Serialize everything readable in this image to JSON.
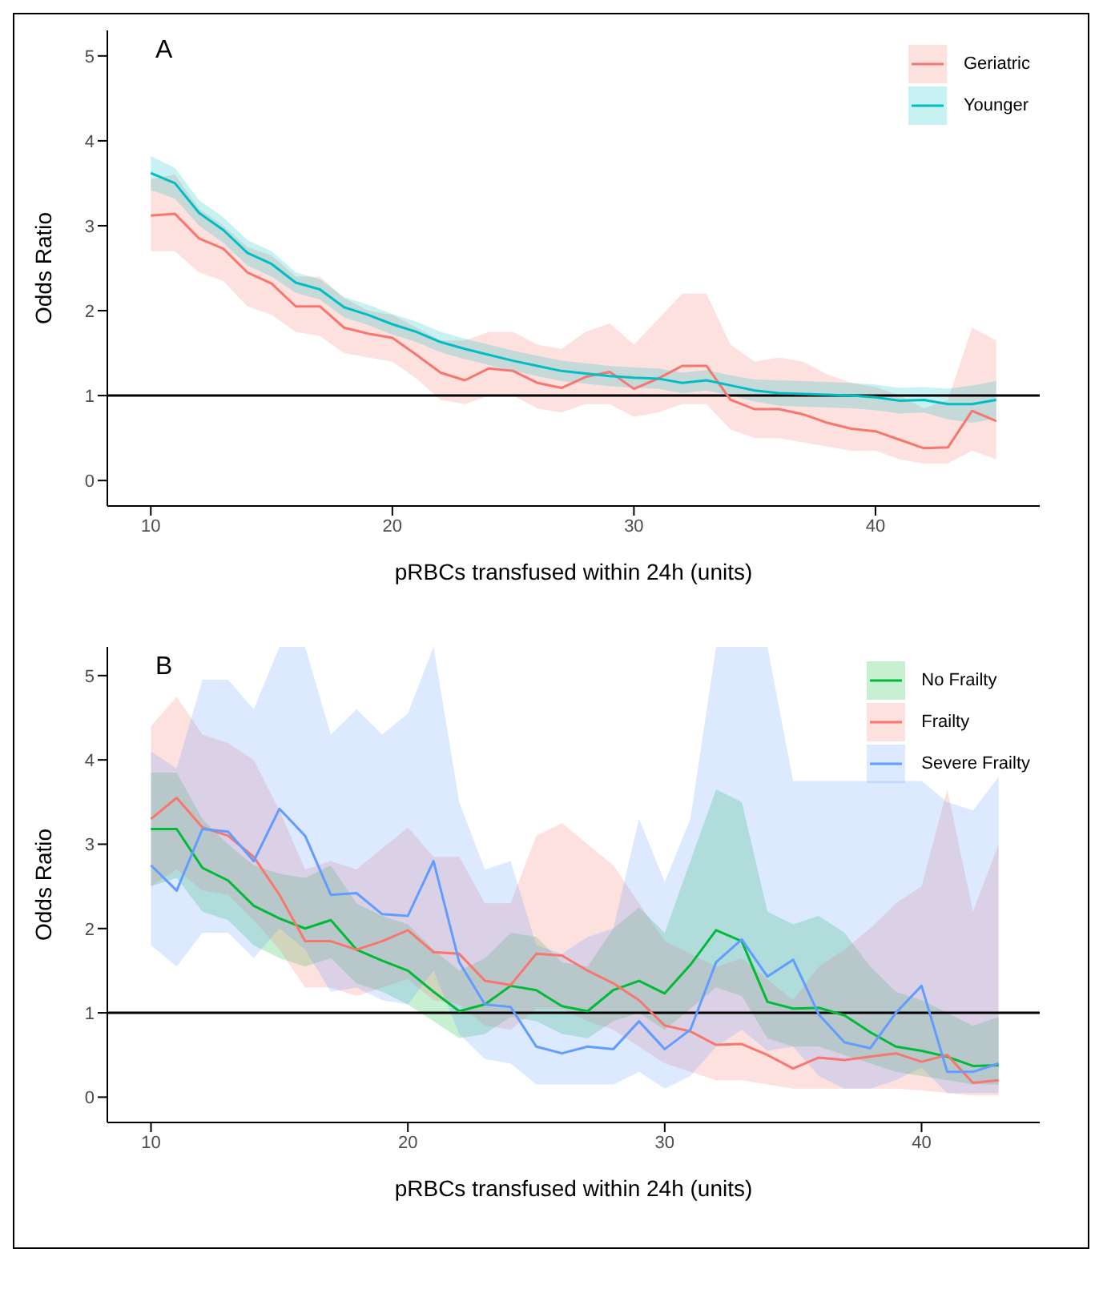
{
  "chart_data": [
    {
      "type": "line",
      "title": "A",
      "xlabel": "pRBCs transfused within 24h (units)",
      "ylabel": "Odds Ratio",
      "legend": "top right",
      "xlim": [
        8.2,
        46.8
      ],
      "xticks": [
        10,
        20,
        30,
        40
      ],
      "ylim": [
        -0.3,
        5.3
      ],
      "yticks": [
        0,
        1,
        2,
        3,
        4,
        5
      ],
      "x": [
        10,
        11,
        12,
        13,
        14,
        15,
        16,
        17,
        18,
        19,
        20,
        21,
        22,
        23,
        24,
        25,
        26,
        27,
        28,
        29,
        30,
        31,
        32,
        33,
        34,
        35,
        36,
        37,
        38,
        39,
        40,
        41,
        42,
        43,
        44,
        45
      ],
      "ref_lines": [
        {
          "axis": "y",
          "value": 1,
          "color": "#000000"
        }
      ],
      "series": [
        {
          "name": "Geriatric",
          "color": "#f8766d",
          "values": [
            3.12,
            3.14,
            2.85,
            2.73,
            2.45,
            2.32,
            2.05,
            2.05,
            1.8,
            1.73,
            1.68,
            1.48,
            1.27,
            1.18,
            1.32,
            1.29,
            1.15,
            1.09,
            1.22,
            1.28,
            1.08,
            1.2,
            1.35,
            1.35,
            0.95,
            0.84,
            0.84,
            0.78,
            0.68,
            0.61,
            0.58,
            0.48,
            0.38,
            0.39,
            0.82,
            0.7
          ],
          "lower": [
            2.7,
            2.7,
            2.45,
            2.35,
            2.05,
            1.95,
            1.75,
            1.7,
            1.5,
            1.45,
            1.4,
            1.2,
            0.95,
            0.9,
            1.0,
            1.0,
            0.85,
            0.8,
            0.9,
            0.9,
            0.75,
            0.8,
            0.9,
            0.9,
            0.6,
            0.5,
            0.5,
            0.45,
            0.4,
            0.35,
            0.35,
            0.25,
            0.2,
            0.2,
            0.35,
            0.25
          ],
          "upper": [
            3.55,
            3.6,
            3.2,
            3.0,
            2.75,
            2.65,
            2.4,
            2.4,
            2.15,
            2.0,
            1.95,
            1.8,
            1.65,
            1.65,
            1.75,
            1.75,
            1.6,
            1.55,
            1.75,
            1.85,
            1.6,
            1.9,
            2.2,
            2.2,
            1.6,
            1.4,
            1.45,
            1.4,
            1.25,
            1.15,
            1.1,
            1.0,
            0.85,
            0.95,
            1.8,
            1.65
          ]
        },
        {
          "name": "Younger",
          "color": "#00bfc4",
          "values": [
            3.62,
            3.5,
            3.15,
            2.95,
            2.68,
            2.55,
            2.33,
            2.25,
            2.04,
            1.95,
            1.84,
            1.75,
            1.63,
            1.55,
            1.48,
            1.41,
            1.35,
            1.29,
            1.26,
            1.23,
            1.21,
            1.2,
            1.15,
            1.18,
            1.12,
            1.06,
            1.03,
            1.02,
            1.01,
            1.0,
            0.98,
            0.94,
            0.95,
            0.9,
            0.9,
            0.95
          ],
          "lower": [
            3.42,
            3.32,
            3.0,
            2.8,
            2.53,
            2.4,
            2.21,
            2.13,
            1.92,
            1.83,
            1.72,
            1.63,
            1.51,
            1.43,
            1.36,
            1.29,
            1.23,
            1.17,
            1.14,
            1.11,
            1.09,
            1.08,
            1.03,
            1.06,
            1.0,
            0.93,
            0.88,
            0.87,
            0.86,
            0.85,
            0.83,
            0.79,
            0.8,
            0.72,
            0.68,
            0.73
          ],
          "upper": [
            3.82,
            3.68,
            3.3,
            3.1,
            2.83,
            2.7,
            2.45,
            2.37,
            2.16,
            2.07,
            1.96,
            1.87,
            1.75,
            1.67,
            1.6,
            1.53,
            1.47,
            1.41,
            1.38,
            1.35,
            1.33,
            1.32,
            1.27,
            1.3,
            1.24,
            1.19,
            1.18,
            1.17,
            1.16,
            1.15,
            1.13,
            1.09,
            1.1,
            1.08,
            1.12,
            1.17
          ]
        }
      ]
    },
    {
      "type": "line",
      "title": "B",
      "xlabel": "pRBCs transfused within 24h (units)",
      "ylabel": "Odds Ratio",
      "legend": "top right",
      "xlim": [
        8.3,
        44.6
      ],
      "xticks": [
        10,
        20,
        30,
        40
      ],
      "ylim": [
        -0.3,
        5.34
      ],
      "yticks": [
        0,
        1,
        2,
        3,
        4,
        5
      ],
      "x": [
        10,
        11,
        12,
        13,
        14,
        15,
        16,
        17,
        18,
        19,
        20,
        21,
        22,
        23,
        24,
        25,
        26,
        27,
        28,
        29,
        30,
        31,
        32,
        33,
        34,
        35,
        36,
        37,
        38,
        39,
        40,
        41,
        42,
        43
      ],
      "ref_lines": [
        {
          "axis": "y",
          "value": 1,
          "color": "#000000"
        }
      ],
      "series": [
        {
          "name": "No Frailty",
          "color": "#00ba38",
          "values": [
            3.18,
            3.18,
            2.72,
            2.57,
            2.27,
            2.12,
            2.0,
            2.1,
            1.75,
            1.62,
            1.5,
            1.25,
            1.02,
            1.1,
            1.32,
            1.27,
            1.08,
            1.02,
            1.27,
            1.38,
            1.23,
            1.57,
            1.98,
            1.85,
            1.13,
            1.05,
            1.06,
            0.97,
            0.77,
            0.6,
            0.55,
            0.48,
            0.37,
            0.38
          ],
          "lower": [
            2.5,
            2.6,
            2.2,
            2.1,
            1.8,
            1.65,
            1.55,
            1.65,
            1.35,
            1.25,
            1.1,
            0.9,
            0.7,
            0.75,
            0.95,
            0.9,
            0.75,
            0.7,
            0.9,
            1.0,
            0.8,
            1.05,
            1.3,
            1.2,
            0.7,
            0.6,
            0.6,
            0.5,
            0.4,
            0.3,
            0.25,
            0.2,
            0.15,
            0.15
          ],
          "upper": [
            3.85,
            3.85,
            3.3,
            3.0,
            2.75,
            2.65,
            2.6,
            2.75,
            2.3,
            2.15,
            2.05,
            1.75,
            1.5,
            1.65,
            1.95,
            1.9,
            1.6,
            1.55,
            2.0,
            2.25,
            1.95,
            2.8,
            3.65,
            3.5,
            2.2,
            2.05,
            2.15,
            1.95,
            1.55,
            1.25,
            1.15,
            1.0,
            0.85,
            0.95
          ]
        },
        {
          "name": "Frailty",
          "color": "#f8766d",
          "values": [
            3.3,
            3.55,
            3.2,
            3.1,
            2.85,
            2.4,
            1.85,
            1.85,
            1.75,
            1.85,
            1.98,
            1.72,
            1.7,
            1.38,
            1.33,
            1.7,
            1.68,
            1.5,
            1.35,
            1.15,
            0.85,
            0.78,
            0.62,
            0.63,
            0.5,
            0.34,
            0.47,
            0.44,
            0.48,
            0.52,
            0.42,
            0.5,
            0.17,
            0.2
          ],
          "lower": [
            2.5,
            2.7,
            2.45,
            2.4,
            2.1,
            1.75,
            1.3,
            1.3,
            1.2,
            1.3,
            1.4,
            1.15,
            1.1,
            0.85,
            0.8,
            1.05,
            1.05,
            0.9,
            0.8,
            0.6,
            0.4,
            0.3,
            0.2,
            0.2,
            0.15,
            0.1,
            0.1,
            0.1,
            0.1,
            0.1,
            0.08,
            0.05,
            0.02,
            0.02
          ],
          "upper": [
            4.4,
            4.75,
            4.3,
            4.2,
            4.0,
            3.4,
            2.7,
            2.8,
            2.7,
            2.95,
            3.2,
            2.85,
            2.85,
            2.3,
            2.3,
            3.1,
            3.25,
            3.0,
            2.75,
            2.3,
            1.85,
            1.7,
            1.55,
            1.65,
            1.4,
            1.15,
            1.55,
            1.75,
            2.0,
            2.3,
            2.5,
            3.65,
            2.2,
            3.0
          ]
        },
        {
          "name": "Severe Frailty",
          "color": "#619cff",
          "values": [
            2.75,
            2.45,
            3.18,
            3.15,
            2.8,
            3.42,
            3.1,
            2.4,
            2.42,
            2.17,
            2.15,
            2.8,
            1.6,
            1.1,
            1.07,
            0.6,
            0.52,
            0.6,
            0.57,
            0.9,
            0.57,
            0.8,
            1.6,
            1.87,
            1.43,
            1.63,
            0.98,
            0.65,
            0.58,
            1.0,
            1.32,
            0.3,
            0.3,
            0.4
          ],
          "lower": [
            1.8,
            1.55,
            1.95,
            1.95,
            1.65,
            2.0,
            1.75,
            1.25,
            1.3,
            1.15,
            1.1,
            1.5,
            0.75,
            0.45,
            0.4,
            0.15,
            0.15,
            0.15,
            0.15,
            0.3,
            0.1,
            0.25,
            0.6,
            0.8,
            0.55,
            0.6,
            0.25,
            0.1,
            0.1,
            0.2,
            0.35,
            0.05,
            0.05,
            0.05
          ],
          "upper": [
            4.1,
            3.9,
            4.95,
            4.95,
            4.6,
            5.34,
            5.34,
            4.3,
            4.6,
            4.3,
            4.55,
            5.34,
            3.5,
            2.7,
            2.8,
            1.8,
            1.7,
            1.9,
            2.0,
            3.3,
            2.55,
            3.3,
            5.34,
            5.34,
            5.34,
            3.75,
            3.75,
            3.75,
            3.75,
            3.75,
            3.75,
            3.5,
            3.4,
            3.8
          ]
        }
      ]
    }
  ]
}
